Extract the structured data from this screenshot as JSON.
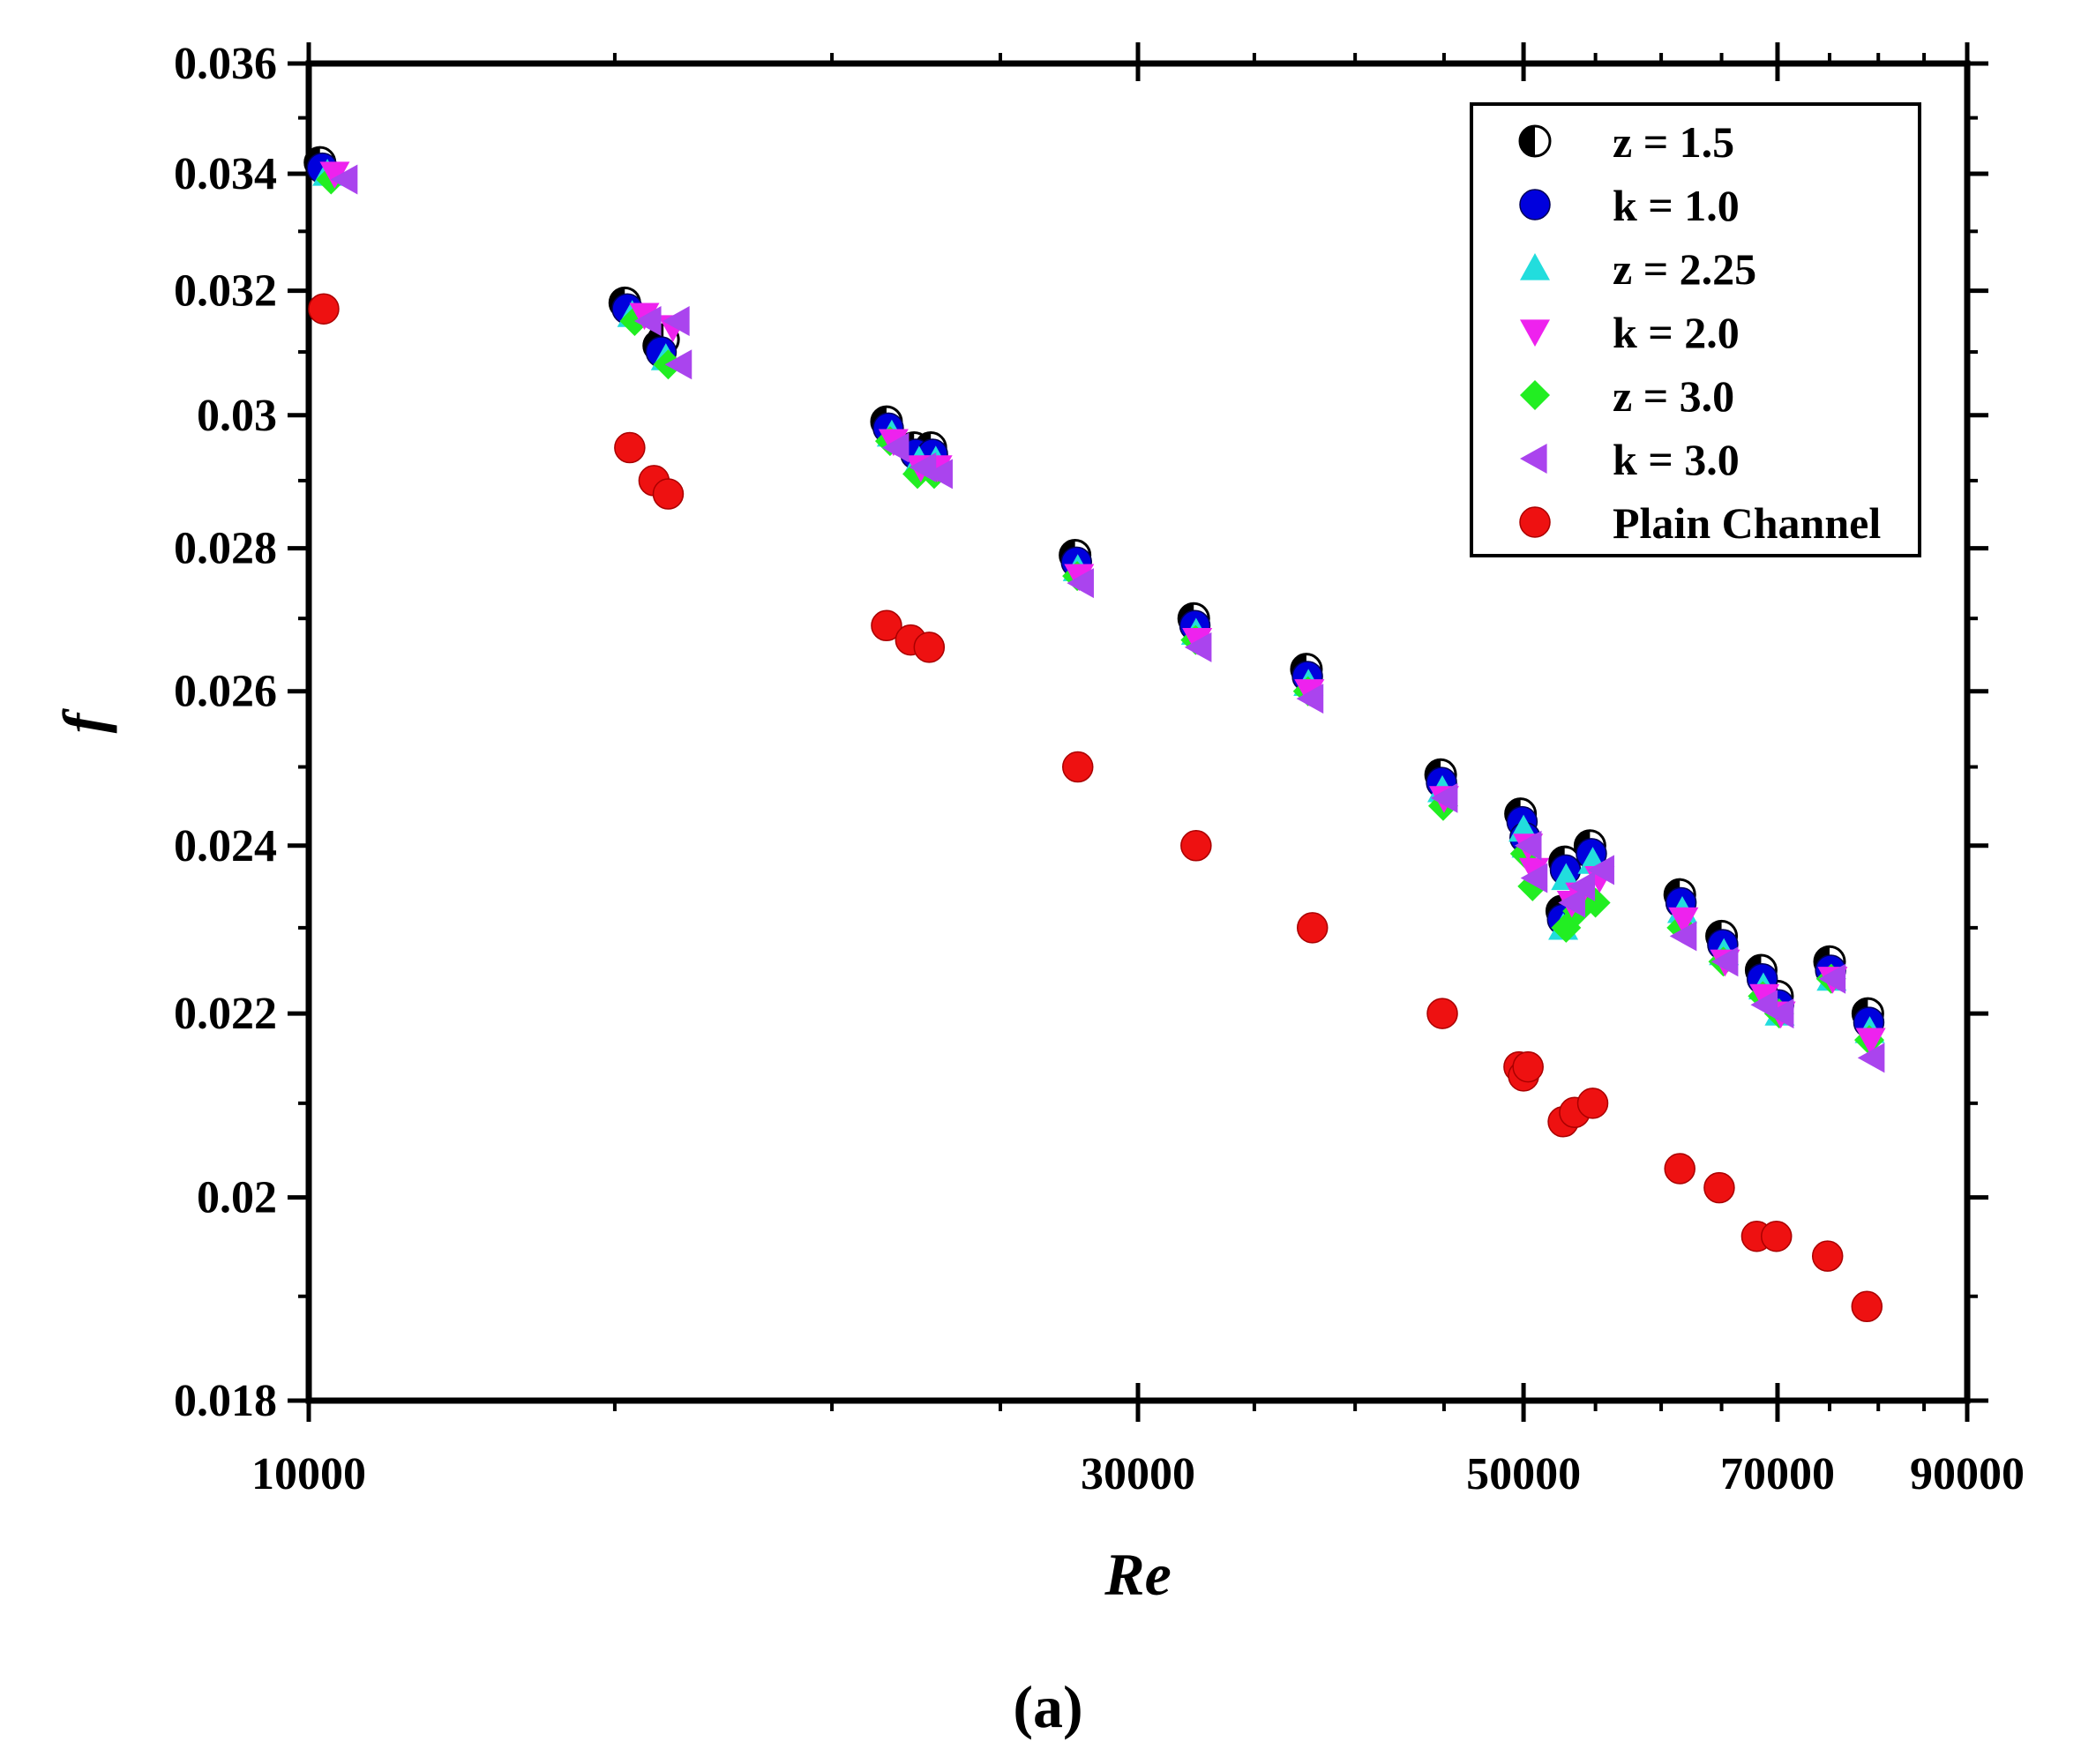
{
  "chart_data": {
    "type": "scatter",
    "caption": "(a)",
    "xlabel": "Re",
    "ylabel": "f",
    "xscale": "log",
    "yscale": "log",
    "xlim": [
      10000,
      90000
    ],
    "ylim": [
      0.018,
      0.036
    ],
    "x_ticks": [
      10000,
      30000,
      50000,
      70000,
      90000
    ],
    "x_tick_labels": [
      "10000",
      "30000",
      "50000",
      "70000",
      "90000"
    ],
    "y_ticks": [
      0.018,
      0.02,
      0.022,
      0.024,
      0.026,
      0.028,
      0.03,
      0.032,
      0.034,
      0.036
    ],
    "y_tick_labels": [
      "0.018",
      "0.02",
      "0.022",
      "0.024",
      "0.026",
      "0.028",
      "0.03",
      "0.032",
      "0.034",
      "0.036"
    ],
    "legend_position": "top-right",
    "series": [
      {
        "name": "z = 1.5",
        "marker": "half-circle",
        "color": "#000000",
        "x": [
          10150,
          15200,
          15900,
          16000,
          21500,
          22300,
          22800,
          27600,
          32300,
          37500,
          44800,
          49800,
          52800,
          52600,
          54600,
          61500,
          65000,
          68500,
          70000,
          75000,
          78900
        ],
        "y": [
          0.0342,
          0.0318,
          0.0311,
          0.0312,
          0.0299,
          0.0295,
          0.0295,
          0.0279,
          0.027,
          0.0263,
          0.0249,
          0.0244,
          0.0238,
          0.0232,
          0.024,
          0.0234,
          0.0229,
          0.0225,
          0.0222,
          0.0226,
          0.022
        ]
      },
      {
        "name": "k = 1.0",
        "marker": "circle",
        "color": "#0000dd",
        "x": [
          10180,
          15250,
          15950,
          21550,
          22350,
          22850,
          27650,
          32350,
          37550,
          44850,
          49900,
          50100,
          52850,
          52650,
          54700,
          61600,
          65100,
          68600,
          70100,
          75100,
          79000
        ],
        "y": [
          0.0341,
          0.0317,
          0.031,
          0.0298,
          0.0294,
          0.0294,
          0.0278,
          0.0269,
          0.0262,
          0.0248,
          0.0243,
          0.0241,
          0.0237,
          0.0231,
          0.0239,
          0.0233,
          0.0228,
          0.0224,
          0.0221,
          0.0225,
          0.0219
        ]
      },
      {
        "name": "z = 2.25",
        "marker": "triangle-up",
        "color": "#22dddd",
        "x": [
          10250,
          15350,
          16050,
          21650,
          22450,
          22950,
          27700,
          32400,
          37600,
          44900,
          50000,
          50200,
          52900,
          52700,
          54800,
          61700,
          65200,
          68700,
          70200,
          75200,
          79100
        ],
        "y": [
          0.034,
          0.0316,
          0.0309,
          0.0297,
          0.0293,
          0.0293,
          0.0277,
          0.0268,
          0.0261,
          0.0247,
          0.0242,
          0.024,
          0.0236,
          0.023,
          0.0238,
          0.0232,
          0.0227,
          0.0223,
          0.022,
          0.0224,
          0.0218
        ]
      },
      {
        "name": "k = 2.0",
        "marker": "triangle-down",
        "color": "#ee22ee",
        "x": [
          10350,
          15600,
          16200,
          21700,
          22500,
          23000,
          27750,
          32450,
          37650,
          45000,
          50300,
          50700,
          53300,
          53900,
          55300,
          61800,
          65300,
          68800,
          70300,
          75300,
          79200
        ],
        "y": [
          0.034,
          0.0316,
          0.0314,
          0.0296,
          0.0292,
          0.0292,
          0.0276,
          0.0267,
          0.026,
          0.0246,
          0.024,
          0.0237,
          0.0233,
          0.0234,
          0.0236,
          0.0231,
          0.0226,
          0.0222,
          0.022,
          0.0224,
          0.0217
        ]
      },
      {
        "name": "z = 3.0",
        "marker": "diamond",
        "color": "#22ee22",
        "x": [
          10300,
          15400,
          16100,
          21600,
          22400,
          22900,
          27680,
          32380,
          37580,
          44950,
          50100,
          50600,
          52900,
          53700,
          55000,
          61650,
          65150,
          68650,
          70150,
          75150,
          79050
        ],
        "y": [
          0.0339,
          0.0315,
          0.0308,
          0.0296,
          0.0291,
          0.0291,
          0.0276,
          0.0267,
          0.026,
          0.0245,
          0.0239,
          0.0235,
          0.023,
          0.0232,
          0.0233,
          0.023,
          0.0226,
          0.0222,
          0.022,
          0.0224,
          0.0217
        ]
      },
      {
        "name": "k = 3.0",
        "marker": "triangle-left",
        "color": "#aa44ee",
        "x": [
          10500,
          15700,
          16300,
          16350,
          21800,
          22600,
          23100,
          27850,
          32550,
          37750,
          45100,
          50400,
          50800,
          53400,
          54100,
          55500,
          61900,
          65400,
          68900,
          70400,
          75400,
          79400
        ],
        "y": [
          0.0339,
          0.0315,
          0.0315,
          0.0308,
          0.0295,
          0.0292,
          0.0291,
          0.0275,
          0.0266,
          0.0259,
          0.0246,
          0.024,
          0.0236,
          0.0233,
          0.0235,
          0.0237,
          0.0229,
          0.0226,
          0.0221,
          0.022,
          0.0224,
          0.0215
        ]
      },
      {
        "name": "Plain Channel",
        "marker": "circle",
        "color": "#ee1111",
        "x": [
          10200,
          15300,
          15800,
          16100,
          21500,
          22200,
          22750,
          27700,
          32400,
          37800,
          44900,
          49700,
          50000,
          50300,
          52700,
          53500,
          54800,
          61500,
          64800,
          68100,
          69900,
          74800,
          78800
        ],
        "y": [
          0.0317,
          0.0295,
          0.029,
          0.0288,
          0.0269,
          0.0267,
          0.0266,
          0.025,
          0.024,
          0.023,
          0.022,
          0.0214,
          0.0213,
          0.0214,
          0.0208,
          0.0209,
          0.021,
          0.0203,
          0.0201,
          0.0196,
          0.0196,
          0.0194,
          0.0189
        ]
      }
    ]
  }
}
